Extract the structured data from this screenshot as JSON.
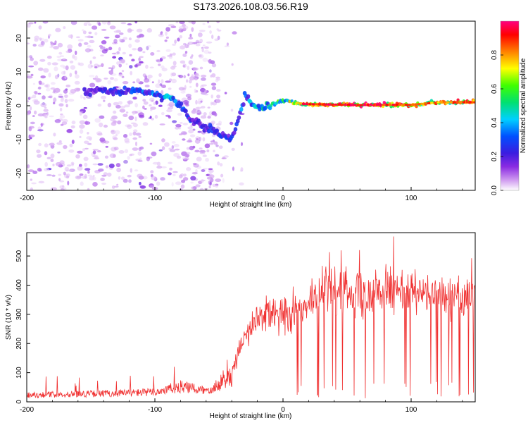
{
  "title": "S173.2026.108.03.56.R19",
  "chart_data": [
    {
      "type": "heatmap",
      "name": "spectrogram",
      "xlabel": "Height of straight line (km)",
      "ylabel": "Frequency (Hz)",
      "xlim": [
        -200,
        150
      ],
      "ylim": [
        -25,
        25
      ],
      "xticks": [
        -200,
        -100,
        0,
        100
      ],
      "yticks": [
        -20,
        -10,
        0,
        10,
        20
      ],
      "colorbar": {
        "label": "Normalized spectral amplitude",
        "range": [
          0,
          1
        ],
        "ticks": [
          "0.0",
          "0.2",
          "0.4",
          "0.6",
          "0.8"
        ],
        "colors": [
          "#ffffff",
          "#d09cf0",
          "#8a2be2",
          "#3b1ce0",
          "#0050ff",
          "#00d0ff",
          "#00e070",
          "#40ff00",
          "#ffff00",
          "#ff8000",
          "#ff0000",
          "#ff0080"
        ]
      },
      "ridge": [
        {
          "x": -150,
          "f": 4.5,
          "a": 0.25
        },
        {
          "x": -135,
          "f": 4.0,
          "a": 0.3
        },
        {
          "x": -115,
          "f": 4.5,
          "a": 0.35
        },
        {
          "x": -100,
          "f": 3.5,
          "a": 0.4
        },
        {
          "x": -88,
          "f": 2.5,
          "a": 0.45
        },
        {
          "x": -80,
          "f": 0,
          "a": 0.35
        },
        {
          "x": -70,
          "f": -5,
          "a": 0.3
        },
        {
          "x": -50,
          "f": -8,
          "a": 0.3
        },
        {
          "x": -40,
          "f": -10,
          "a": 0.35
        },
        {
          "x": -30,
          "f": 2.5,
          "a": 0.4
        },
        {
          "x": -20,
          "f": -1,
          "a": 0.45
        },
        {
          "x": -10,
          "f": 0,
          "a": 0.55
        },
        {
          "x": 0,
          "f": 1.5,
          "a": 0.6
        },
        {
          "x": 15,
          "f": 0.5,
          "a": 0.9
        },
        {
          "x": 60,
          "f": 0.2,
          "a": 0.95
        },
        {
          "x": 100,
          "f": 0.3,
          "a": 0.85
        },
        {
          "x": 120,
          "f": 1.0,
          "a": 0.8
        },
        {
          "x": 150,
          "f": 1.0,
          "a": 0.9
        }
      ]
    },
    {
      "type": "line",
      "name": "snr",
      "xlabel": "Height of straight line (km)",
      "ylabel": "SNR (10 * v/v)",
      "xlim": [
        -200,
        150
      ],
      "ylim": [
        0,
        580
      ],
      "xticks": [
        -200,
        -100,
        0,
        100
      ],
      "yticks": [
        0,
        100,
        200,
        300,
        400,
        500
      ],
      "color": "#f03030",
      "envelope": [
        {
          "x": -200,
          "y": 25
        },
        {
          "x": -140,
          "y": 30
        },
        {
          "x": -100,
          "y": 35
        },
        {
          "x": -80,
          "y": 55
        },
        {
          "x": -60,
          "y": 40
        },
        {
          "x": -40,
          "y": 90
        },
        {
          "x": -30,
          "y": 230
        },
        {
          "x": -15,
          "y": 300
        },
        {
          "x": 0,
          "y": 300
        },
        {
          "x": 20,
          "y": 340
        },
        {
          "x": 35,
          "y": 390
        },
        {
          "x": 60,
          "y": 380
        },
        {
          "x": 100,
          "y": 370
        },
        {
          "x": 130,
          "y": 360
        },
        {
          "x": 150,
          "y": 370
        }
      ]
    }
  ]
}
